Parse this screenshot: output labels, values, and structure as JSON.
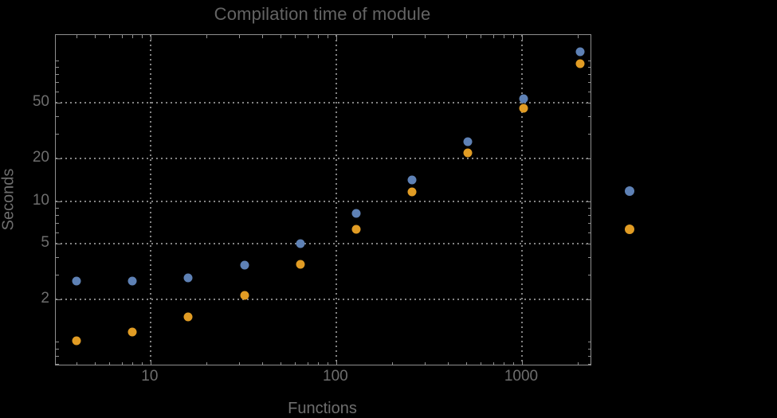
{
  "title": "Compilation time of module",
  "colors": {
    "background": "#000000",
    "frame": "#8f8f8f",
    "gridlines": "#838383",
    "text": "#6e6e6e",
    "title_text": "#646464",
    "series_blue": "#5E81B5",
    "series_orange": "#E19C24"
  },
  "chart_data": {
    "type": "scatter",
    "title": "Compilation time of module",
    "xlabel": "Functions",
    "ylabel": "Seconds",
    "xscale": "log",
    "yscale": "log",
    "xlim": [
      3.09,
      2340
    ],
    "ylim": [
      0.69,
      151
    ],
    "grid": true,
    "x": [
      4,
      8,
      16,
      32,
      64,
      128,
      256,
      512,
      1024,
      2048
    ],
    "series": [
      {
        "name": "series-blue",
        "color": "#5E81B5",
        "values": [
          2.7,
          2.7,
          2.85,
          3.5,
          5.0,
          8.2,
          14.2,
          26.5,
          53.5,
          115
        ]
      },
      {
        "name": "series-orange",
        "color": "#E19C24",
        "values": [
          1.02,
          1.18,
          1.5,
          2.15,
          3.55,
          6.3,
          11.7,
          22,
          45.5,
          94
        ]
      }
    ],
    "x_ticks_major": [
      10,
      100,
      1000
    ],
    "x_tick_labels": [
      "10",
      "100",
      "1000"
    ],
    "x_ticks_minor": [
      4,
      5,
      6,
      7,
      8,
      9,
      20,
      30,
      40,
      50,
      60,
      70,
      80,
      90,
      200,
      300,
      400,
      500,
      600,
      700,
      800,
      900,
      2000
    ],
    "y_ticks_major": [
      2,
      5,
      10,
      20,
      50
    ],
    "y_tick_labels": [
      "2",
      "5",
      "10",
      "20",
      "50"
    ],
    "y_ticks_minor": [
      0.7,
      0.8,
      0.9,
      1,
      3,
      4,
      6,
      7,
      8,
      9,
      30,
      40,
      60,
      70,
      80,
      90,
      100
    ],
    "legend_position": "right-outside",
    "legend": [
      {
        "marker_color": "#5E81B5",
        "label": ""
      },
      {
        "marker_color": "#E19C24",
        "label": ""
      }
    ]
  }
}
